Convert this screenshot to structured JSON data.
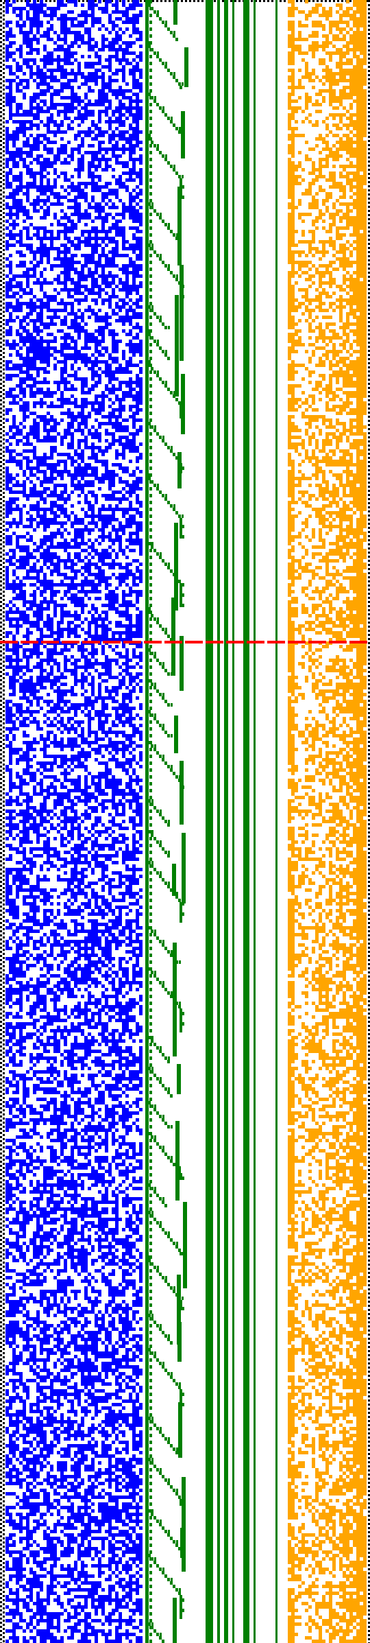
{
  "colors": {
    "background": "#ffffff",
    "frame": "#000000",
    "blue_block": "#0000ff",
    "green_block": "#008000",
    "orange_block": "#ffa500",
    "divider_line": "#ff0000"
  },
  "regions": [
    {
      "name": "left-dotted-border",
      "color": "#000000"
    },
    {
      "name": "blue-noise-block",
      "color": "#0000ff"
    },
    {
      "name": "green-staircase-block",
      "color": "#008000"
    },
    {
      "name": "green-vertical-stripes",
      "color": "#008000"
    },
    {
      "name": "orange-noise-block",
      "color": "#ffa500"
    }
  ],
  "divider": {
    "style": "dashed",
    "color": "#ff0000"
  }
}
